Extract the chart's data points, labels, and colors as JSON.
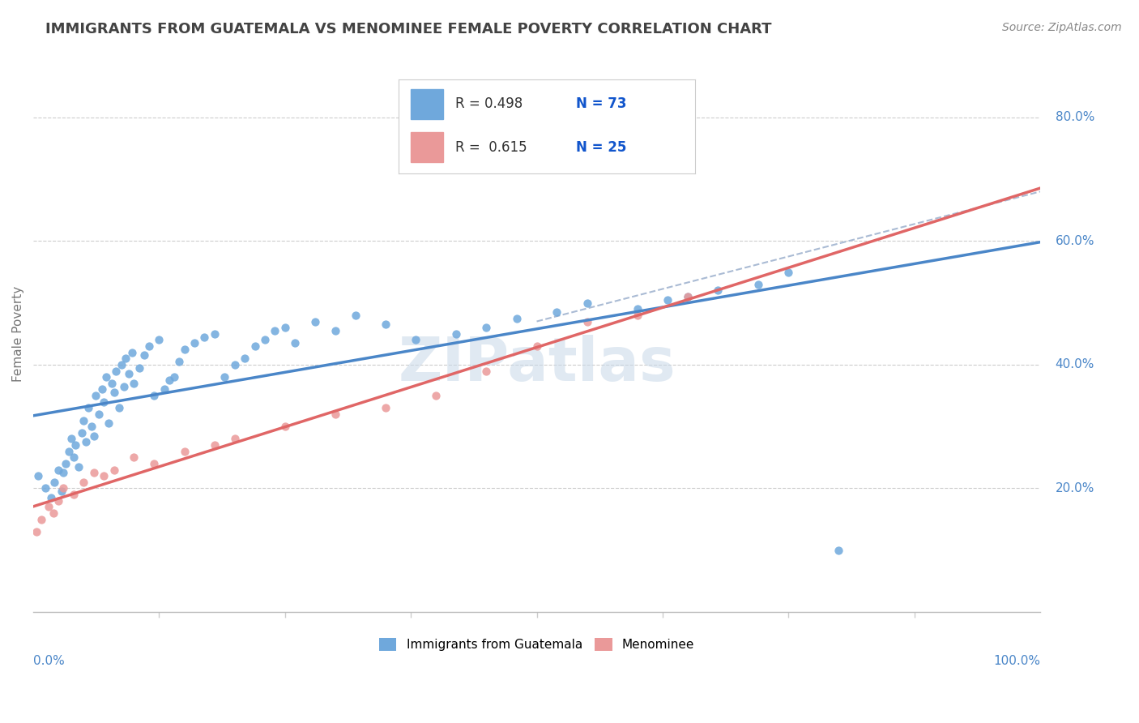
{
  "title": "IMMIGRANTS FROM GUATEMALA VS MENOMINEE FEMALE POVERTY CORRELATION CHART",
  "source": "Source: ZipAtlas.com",
  "ylabel": "Female Poverty",
  "legend_label_blue": "Immigrants from Guatemala",
  "legend_label_pink": "Menominee",
  "blue_color": "#6fa8dc",
  "pink_color": "#ea9999",
  "blue_line_color": "#4a86c8",
  "pink_line_color": "#e06666",
  "dashed_line_color": "#aabbd4",
  "text_blue_color": "#1155cc",
  "watermark_color": "#c8d8e8",
  "title_color": "#434343",
  "blue_scatter_x": [
    0.5,
    1.2,
    1.8,
    2.1,
    2.5,
    2.8,
    3.0,
    3.2,
    3.5,
    3.8,
    4.0,
    4.2,
    4.5,
    4.8,
    5.0,
    5.2,
    5.5,
    5.8,
    6.0,
    6.2,
    6.5,
    6.8,
    7.0,
    7.2,
    7.5,
    7.8,
    8.0,
    8.2,
    8.5,
    8.8,
    9.0,
    9.2,
    9.5,
    9.8,
    10.0,
    10.5,
    11.0,
    11.5,
    12.0,
    12.5,
    13.0,
    13.5,
    14.0,
    14.5,
    15.0,
    16.0,
    17.0,
    18.0,
    19.0,
    20.0,
    21.0,
    22.0,
    23.0,
    24.0,
    25.0,
    26.0,
    28.0,
    30.0,
    32.0,
    35.0,
    38.0,
    42.0,
    45.0,
    48.0,
    52.0,
    55.0,
    60.0,
    63.0,
    65.0,
    68.0,
    72.0,
    75.0,
    80.0
  ],
  "blue_scatter_y": [
    22.0,
    20.0,
    18.5,
    21.0,
    23.0,
    19.5,
    22.5,
    24.0,
    26.0,
    28.0,
    25.0,
    27.0,
    23.5,
    29.0,
    31.0,
    27.5,
    33.0,
    30.0,
    28.5,
    35.0,
    32.0,
    36.0,
    34.0,
    38.0,
    30.5,
    37.0,
    35.5,
    39.0,
    33.0,
    40.0,
    36.5,
    41.0,
    38.5,
    42.0,
    37.0,
    39.5,
    41.5,
    43.0,
    35.0,
    44.0,
    36.0,
    37.5,
    38.0,
    40.5,
    42.5,
    43.5,
    44.5,
    45.0,
    38.0,
    40.0,
    41.0,
    43.0,
    44.0,
    45.5,
    46.0,
    43.5,
    47.0,
    45.5,
    48.0,
    46.5,
    44.0,
    45.0,
    46.0,
    47.5,
    48.5,
    50.0,
    49.0,
    50.5,
    51.0,
    52.0,
    53.0,
    55.0,
    10.0
  ],
  "pink_scatter_x": [
    0.3,
    0.8,
    1.5,
    2.0,
    2.5,
    3.0,
    4.0,
    5.0,
    6.0,
    7.0,
    8.0,
    10.0,
    12.0,
    15.0,
    18.0,
    20.0,
    25.0,
    30.0,
    35.0,
    40.0,
    45.0,
    50.0,
    55.0,
    60.0,
    65.0
  ],
  "pink_scatter_y": [
    13.0,
    15.0,
    17.0,
    16.0,
    18.0,
    20.0,
    19.0,
    21.0,
    22.5,
    22.0,
    23.0,
    25.0,
    24.0,
    26.0,
    27.0,
    28.0,
    30.0,
    32.0,
    33.0,
    35.0,
    39.0,
    43.0,
    47.0,
    48.0,
    51.0
  ],
  "ytick_labels": [
    "20.0%",
    "40.0%",
    "60.0%",
    "80.0%"
  ],
  "ytick_values": [
    20,
    40,
    60,
    80
  ],
  "xlim": [
    0,
    100
  ],
  "ylim": [
    0,
    90
  ]
}
